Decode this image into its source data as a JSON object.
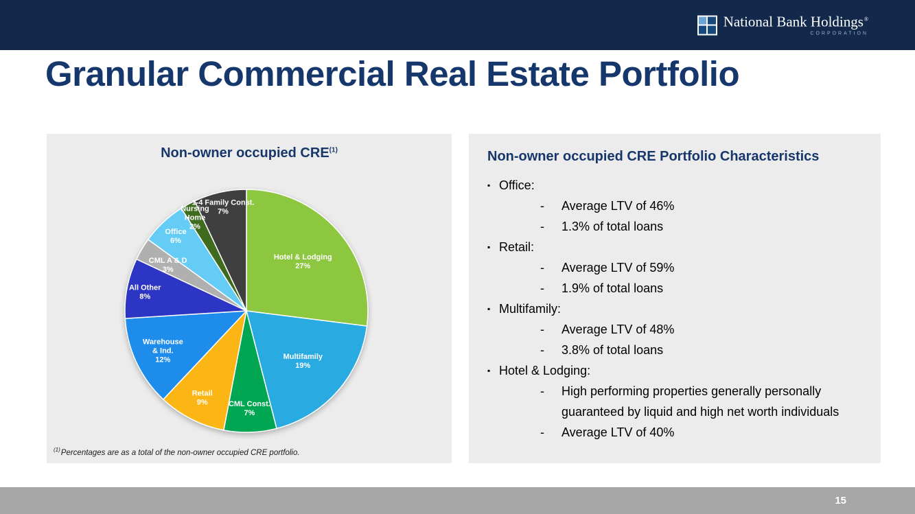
{
  "header": {
    "logo_text": "National Bank Holdings",
    "logo_reg": "®",
    "logo_subtext": "CORPORATION",
    "bar_color": "#12294b"
  },
  "slide_title": "Granular Commercial Real Estate Portfolio",
  "left_panel": {
    "title": "Non-owner occupied CRE",
    "title_sup": "(1)",
    "footnote_sup": "(1)",
    "footnote": "Percentages are as a total of the non-owner occupied CRE portfolio."
  },
  "right_panel": {
    "title": "Non-owner occupied CRE Portfolio Characteristics",
    "items": [
      {
        "label": "Office:",
        "subs": [
          "Average LTV of 46%",
          "1.3% of total loans"
        ]
      },
      {
        "label": "Retail:",
        "subs": [
          "Average LTV of 59%",
          "1.9% of total loans"
        ]
      },
      {
        "label": "Multifamily:",
        "subs": [
          "Average LTV of 48%",
          "3.8% of total loans"
        ]
      },
      {
        "label": "Hotel & Lodging:",
        "subs": [
          "High performing properties generally personally guaranteed by liquid and high net worth individuals",
          "Average LTV of 40%"
        ]
      }
    ]
  },
  "footer": {
    "page_number": "15"
  },
  "colors": {
    "title_navy": "#16376b",
    "panel_bg": "#ececec",
    "footer_bg": "#a6a6a6"
  },
  "chart_data": {
    "type": "pie",
    "title": "Non-owner occupied CRE",
    "start_angle_deg": -90,
    "direction": "clockwise",
    "slices": [
      {
        "label": "Hotel & Lodging",
        "value": 27,
        "color": "#8dc63f",
        "label_lines": [
          "Hotel & Lodging",
          "27%"
        ],
        "label_r": 0.62
      },
      {
        "label": "Multifamily",
        "value": 19,
        "color": "#29abe2",
        "label_lines": [
          "Multifamily",
          "19%"
        ],
        "label_r": 0.62
      },
      {
        "label": "CML Const.",
        "value": 7,
        "color": "#00a651",
        "label_lines": [
          "CML Const.",
          "7%"
        ],
        "label_r": 0.8
      },
      {
        "label": "Retail",
        "value": 9,
        "color": "#fbb615",
        "label_lines": [
          "Retail",
          "9%"
        ],
        "label_r": 0.8
      },
      {
        "label": "Warehouse & Ind.",
        "value": 12,
        "color": "#1d8ceb",
        "label_lines": [
          "Warehouse",
          "& Ind.",
          "12%"
        ],
        "label_r": 0.76
      },
      {
        "label": "All Other",
        "value": 8,
        "color": "#2d35c4",
        "label_lines": [
          "All Other",
          "8%"
        ],
        "label_r": 0.85
      },
      {
        "label": "CML A & D",
        "value": 3,
        "color": "#b0b0b0",
        "label_lines": [
          "CML A & D",
          "3%"
        ],
        "label_r": 0.75
      },
      {
        "label": "Office",
        "value": 6,
        "color": "#64ccf5",
        "label_lines": [
          "Office",
          "6%"
        ],
        "label_r": 0.85
      },
      {
        "label": "Nursing Home",
        "value": 2,
        "color": "#3f6b1f",
        "label_lines": [
          "Nursing",
          "Home",
          "2%"
        ],
        "label_r": 0.88
      },
      {
        "label": "1-4 Family Const.",
        "value": 7,
        "color": "#3f3f3f",
        "label_lines": [
          "1-4 Family  Const.",
          "7%"
        ],
        "label_r": 0.88
      }
    ]
  }
}
